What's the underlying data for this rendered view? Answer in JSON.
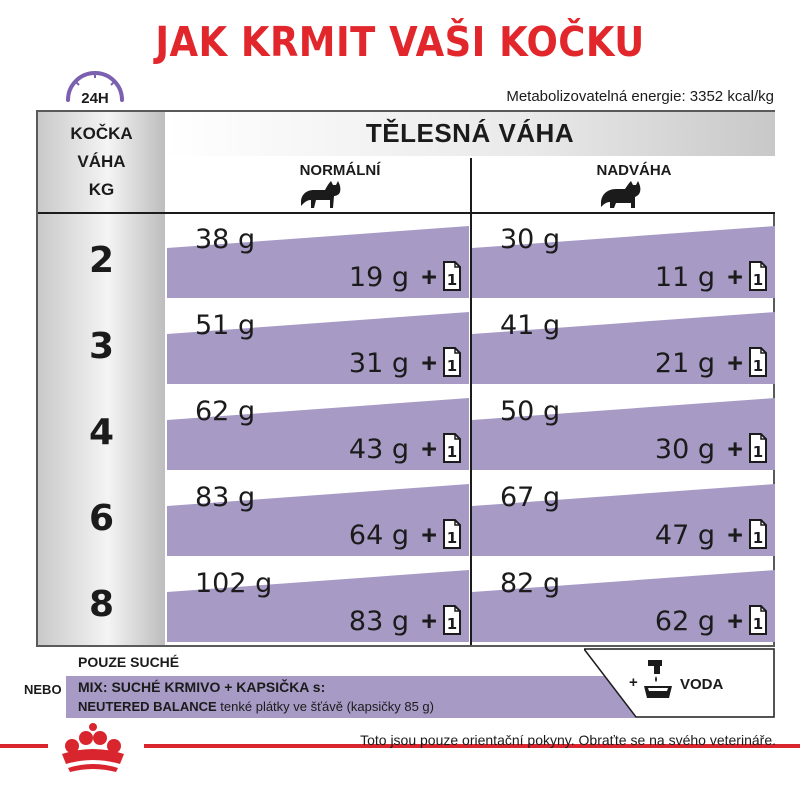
{
  "title": "JAK KRMIT VAŠI KOČKU",
  "clock_label": "24H",
  "energy": "Metabolizovatelná energie: 3352 kcal/kg",
  "left_header": {
    "line1": "KOČKA",
    "line2": "VÁHA",
    "line3": "KG"
  },
  "header": {
    "title": "TĚLESNÁ VÁHA",
    "normal": "NORMÁLNÍ",
    "overweight": "NADVÁHA"
  },
  "pouch_count": "1",
  "plus": "+",
  "rows": [
    {
      "kg": "2",
      "normal_dry": "38 g",
      "normal_wet": "19 g",
      "over_dry": "30 g",
      "over_wet": "11 g"
    },
    {
      "kg": "3",
      "normal_dry": "51 g",
      "normal_wet": "31 g",
      "over_dry": "41 g",
      "over_wet": "21 g"
    },
    {
      "kg": "4",
      "normal_dry": "62 g",
      "normal_wet": "43 g",
      "over_dry": "50 g",
      "over_wet": "30 g"
    },
    {
      "kg": "6",
      "normal_dry": "83 g",
      "normal_wet": "64 g",
      "over_dry": "67 g",
      "over_wet": "47 g"
    },
    {
      "kg": "8",
      "normal_dry": "102 g",
      "normal_wet": "83 g",
      "over_dry": "82 g",
      "over_wet": "62 g"
    }
  ],
  "legend": {
    "dry_only": "POUZE SUCHÉ",
    "or": "NEBO",
    "mix_line1": "MIX: SUCHÉ KRMIVO + KAPSIČKA s:",
    "mix_product": "NEUTERED BALANCE",
    "mix_rest": "tenké plátky ve šťávě (kapsičky 85 g)",
    "water_plus": "+",
    "water": "VODA"
  },
  "disclaimer": "Toto jsou pouze orientační pokyny. Obraťte se na svého veterináře.",
  "colors": {
    "title_red": "#e1262c",
    "band_purple": "#a79bc6",
    "brand_red": "#d9262e"
  },
  "icons": {
    "clock": "clock-24h-icon",
    "cat": "cat-silhouette-icon",
    "pouch": "pouch-icon",
    "water": "water-tap-bowl-icon",
    "logo": "royal-canin-crown-logo"
  }
}
